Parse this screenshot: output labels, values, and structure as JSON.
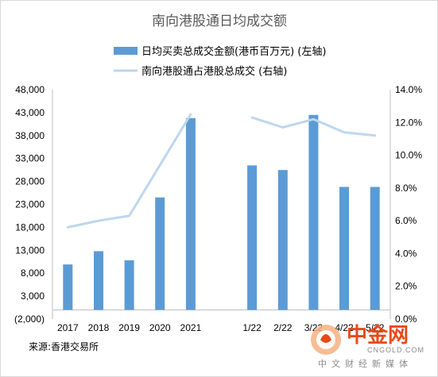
{
  "chart_data": {
    "type": "bar+line",
    "title": "南向港股通日均成交额",
    "categories": [
      "2017",
      "2018",
      "2019",
      "2020",
      "2021",
      "",
      "1/22",
      "2/22",
      "3/22",
      "4/22",
      "5/22"
    ],
    "category_labels": [
      "2017",
      "2018",
      "2019",
      "2020",
      "2021",
      "",
      "1/22",
      "2/22",
      "3/22",
      "4/22",
      "5/22"
    ],
    "series": [
      {
        "name": "日均买卖总成交金额(港币百万元) (左轴)",
        "type": "bar",
        "axis": "left",
        "color": "#5b9bd5",
        "values": [
          9900,
          12800,
          10800,
          24500,
          41800,
          null,
          31500,
          30500,
          42500,
          26800,
          26800
        ]
      },
      {
        "name": "南向港股通占港股总成交 (右轴)",
        "type": "line",
        "axis": "right",
        "color": "#bdd7ee",
        "values": [
          5.6,
          6.0,
          6.3,
          null,
          12.5,
          null,
          12.3,
          11.7,
          12.2,
          11.4,
          11.2
        ],
        "connect_2019_2021": true
      }
    ],
    "y_left": {
      "min": -2000,
      "max": 48000,
      "ticks": [
        -2000,
        3000,
        8000,
        13000,
        18000,
        23000,
        28000,
        33000,
        38000,
        43000,
        48000
      ],
      "tick_labels": [
        "(2,000)",
        "3,000",
        "8,000",
        "13,000",
        "18,000",
        "23,000",
        "28,000",
        "33,000",
        "38,000",
        "43,000",
        "48,000"
      ]
    },
    "y_right": {
      "min": 0,
      "max": 14,
      "ticks": [
        0,
        2,
        4,
        6,
        8,
        10,
        12,
        14
      ],
      "tick_labels": [
        "0.0%",
        "2.0%",
        "4.0%",
        "6.0%",
        "8.0%",
        "10.0%",
        "12.0%",
        "14.0%"
      ]
    },
    "grid": false,
    "legend_position": "top"
  },
  "source_note": "来源:香港交易所",
  "watermark": {
    "brand_cn": "中金网",
    "brand_en": "CNGOLD.COM",
    "tagline": "中文财经新媒体"
  },
  "colors": {
    "bar": "#5b9bd5",
    "line": "#bdd7ee",
    "title": "#595959",
    "axis": "#bfbfbf",
    "watermark_accent": "#e64a19"
  }
}
